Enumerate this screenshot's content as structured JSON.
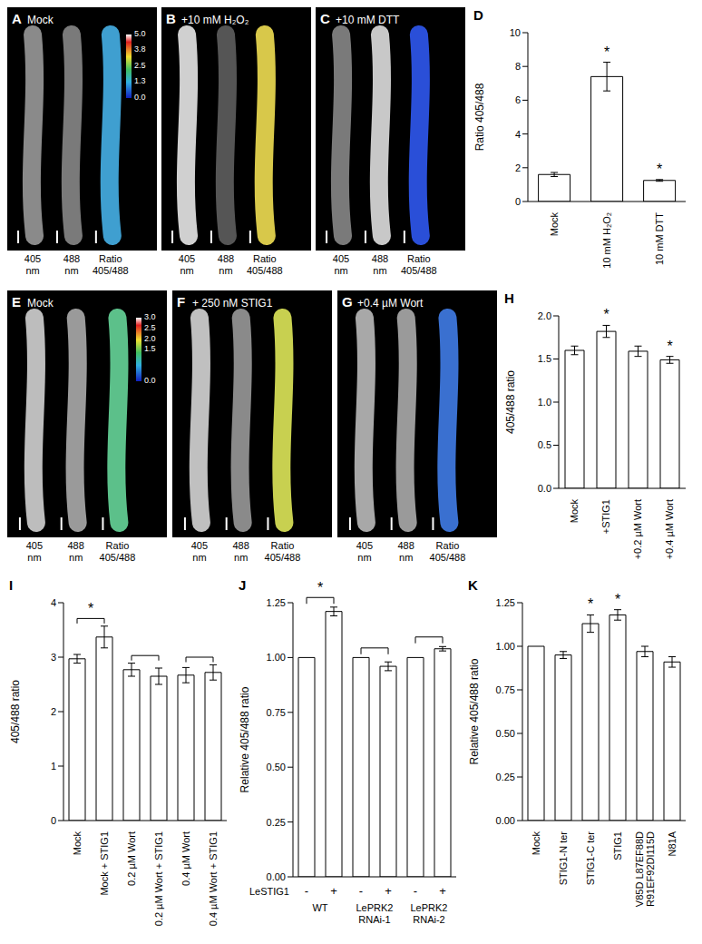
{
  "chart_data": [
    {
      "panel": "D",
      "type": "bar",
      "y_label": "Ratio 405/488",
      "categories": [
        "Mock",
        "10 mM H₂O₂",
        "10 mM DTT"
      ],
      "values": [
        1.6,
        7.4,
        1.25
      ],
      "errors": [
        0.12,
        0.85,
        0.05
      ],
      "annotations": [
        null,
        "*",
        "*"
      ],
      "ylim": [
        0,
        10
      ],
      "yticks": [
        0,
        2,
        4,
        6,
        8,
        10
      ],
      "color": "#ffffff"
    },
    {
      "panel": "H",
      "type": "bar",
      "y_label": "405/488 ratio",
      "categories": [
        "Mock",
        "+STIG1",
        "+0.2 µM Wort",
        "+0.4 µM Wort"
      ],
      "values": [
        1.6,
        1.82,
        1.59,
        1.49
      ],
      "errors": [
        0.05,
        0.07,
        0.06,
        0.04
      ],
      "annotations": [
        null,
        "*",
        null,
        "*"
      ],
      "ylim": [
        0,
        2
      ],
      "yticks": [
        {
          "value": 0,
          "label": "0.0"
        },
        {
          "value": 0.5,
          "label": "0.5"
        },
        {
          "value": 1,
          "label": "1.0"
        },
        {
          "value": 1.5,
          "label": "1.5"
        },
        {
          "value": 2,
          "label": "2.0"
        }
      ],
      "color": "#ffffff"
    },
    {
      "panel": "I",
      "type": "bar",
      "y_label": "405/488 ratio",
      "categories": [
        "Mock",
        "Mock + STIG1",
        "0.2 µM Wort",
        "0.2 µM Wort + STIG1",
        "0.4 µM Wort",
        "0.4 µM Wort + STIG1"
      ],
      "values": [
        2.97,
        3.37,
        2.77,
        2.65,
        2.67,
        2.72
      ],
      "errors": [
        0.08,
        0.2,
        0.12,
        0.15,
        0.14,
        0.14
      ],
      "brackets": [
        {
          "bars": [
            0,
            1
          ],
          "label": "*"
        },
        {
          "bars": [
            2,
            3
          ]
        },
        {
          "bars": [
            4,
            5
          ]
        }
      ],
      "ylim": [
        0,
        4
      ],
      "yticks": [
        0,
        1,
        2,
        3,
        4
      ],
      "color": "#ffffff"
    },
    {
      "panel": "J",
      "type": "bar",
      "y_label": "Relative 405/488 ratio",
      "x_label": "LeSTIG1",
      "categories": [
        "-",
        "+",
        "-",
        "+",
        "-",
        "+"
      ],
      "groups": [
        {
          "label": "WT",
          "bars": [
            0,
            1
          ]
        },
        {
          "label": "LePRK2 RNAi-1",
          "bars": [
            2,
            3
          ]
        },
        {
          "label": "LePRK2 RNAi-2",
          "bars": [
            4,
            5
          ]
        }
      ],
      "values": [
        1,
        1.21,
        1,
        0.96,
        1,
        1.04
      ],
      "errors": [
        null,
        0.02,
        null,
        0.02,
        null,
        0.01
      ],
      "brackets": [
        {
          "bars": [
            0,
            1
          ],
          "label": "*"
        },
        {
          "bars": [
            2,
            3
          ]
        },
        {
          "bars": [
            4,
            5
          ]
        }
      ],
      "ylim": [
        0,
        1.25
      ],
      "yticks": [
        {
          "value": 0,
          "label": "0.00"
        },
        {
          "value": 0.25,
          "label": "0.25"
        },
        {
          "value": 0.5,
          "label": "0.50"
        },
        {
          "value": 0.75,
          "label": "0.75"
        },
        {
          "value": 1,
          "label": "1.00"
        },
        {
          "value": 1.25,
          "label": "1.25"
        }
      ],
      "color": "#ffffff"
    },
    {
      "panel": "K",
      "type": "bar",
      "y_label": "Relative 405/488 ratio",
      "categories": [
        "Mock",
        "STIG1-N ter",
        "STIG1-C ter",
        "STIG1",
        "V85D L87EF88D R91EF92DI115D",
        "N81A"
      ],
      "values": [
        1,
        0.95,
        1.13,
        1.18,
        0.97,
        0.91
      ],
      "errors": [
        null,
        0.02,
        0.05,
        0.03,
        0.03,
        0.03
      ],
      "annotations": [
        null,
        null,
        "*",
        "*",
        null,
        null
      ],
      "ylim": [
        0,
        1.25
      ],
      "yticks": [
        {
          "value": 0,
          "label": "0.00"
        },
        {
          "value": 0.25,
          "label": "0.25"
        },
        {
          "value": 0.5,
          "label": "0.50"
        },
        {
          "value": 0.75,
          "label": "0.75"
        },
        {
          "value": 1,
          "label": "1.00"
        },
        {
          "value": 1.25,
          "label": "1.25"
        }
      ],
      "color": "#ffffff"
    }
  ],
  "images": [
    {
      "panel": "A",
      "title": "Mock",
      "channels": [
        {
          "label": "405 nm",
          "color": "#8a8a8a"
        },
        {
          "label": "488 nm",
          "color": "#7a7a7a"
        },
        {
          "label": "Ratio 405/488",
          "color": "#3f9fd0"
        }
      ],
      "colorbar": {
        "range": [
          0,
          5
        ],
        "ticks": [
          {
            "value": 5,
            "label": "5.0"
          },
          {
            "value": 3.8,
            "label": "3.8"
          },
          {
            "value": 2.5,
            "label": "2.5"
          },
          {
            "value": 1.3,
            "label": "1.3"
          },
          {
            "value": 0,
            "label": "0.0"
          }
        ]
      }
    },
    {
      "panel": "B",
      "title": "+10 mM H₂O₂",
      "channels": [
        {
          "label": "405 nm",
          "color": "#d0d0d0"
        },
        {
          "label": "488 nm",
          "color": "#555555"
        },
        {
          "label": "Ratio 405/488",
          "color": "#d8c84a"
        }
      ]
    },
    {
      "panel": "C",
      "title": "+10 mM DTT",
      "channels": [
        {
          "label": "405 nm",
          "color": "#7a7a7a"
        },
        {
          "label": "488 nm",
          "color": "#c8c8c8"
        },
        {
          "label": "Ratio 405/488",
          "color": "#2a4fd8"
        }
      ]
    },
    {
      "panel": "E",
      "title": "Mock",
      "channels": [
        {
          "label": "405 nm",
          "color": "#bdbdbd"
        },
        {
          "label": "488 nm",
          "color": "#9a9a9a"
        },
        {
          "label": "Ratio 405/488",
          "color": "#5cc08a"
        }
      ],
      "colorbar": {
        "range": [
          0,
          3
        ],
        "ticks": [
          {
            "value": 3,
            "label": "3.0"
          },
          {
            "value": 2.5,
            "label": "2.5"
          },
          {
            "value": 2,
            "label": "2.0"
          },
          {
            "value": 1.5,
            "label": "1.5"
          },
          {
            "value": 0,
            "label": "0.0"
          }
        ]
      }
    },
    {
      "panel": "F",
      "title": "+ 250 nM STIG1",
      "channels": [
        {
          "label": "405 nm",
          "color": "#c0c0c0"
        },
        {
          "label": "488 nm",
          "color": "#8a8a8a"
        },
        {
          "label": "Ratio 405/488",
          "color": "#c8d050"
        }
      ]
    },
    {
      "panel": "G",
      "title": "+0.4 µM Wort",
      "channels": [
        {
          "label": "405 nm",
          "color": "#a8a8a8"
        },
        {
          "label": "488 nm",
          "color": "#9a9a9a"
        },
        {
          "label": "Ratio 405/488",
          "color": "#3a70d0"
        }
      ]
    }
  ]
}
